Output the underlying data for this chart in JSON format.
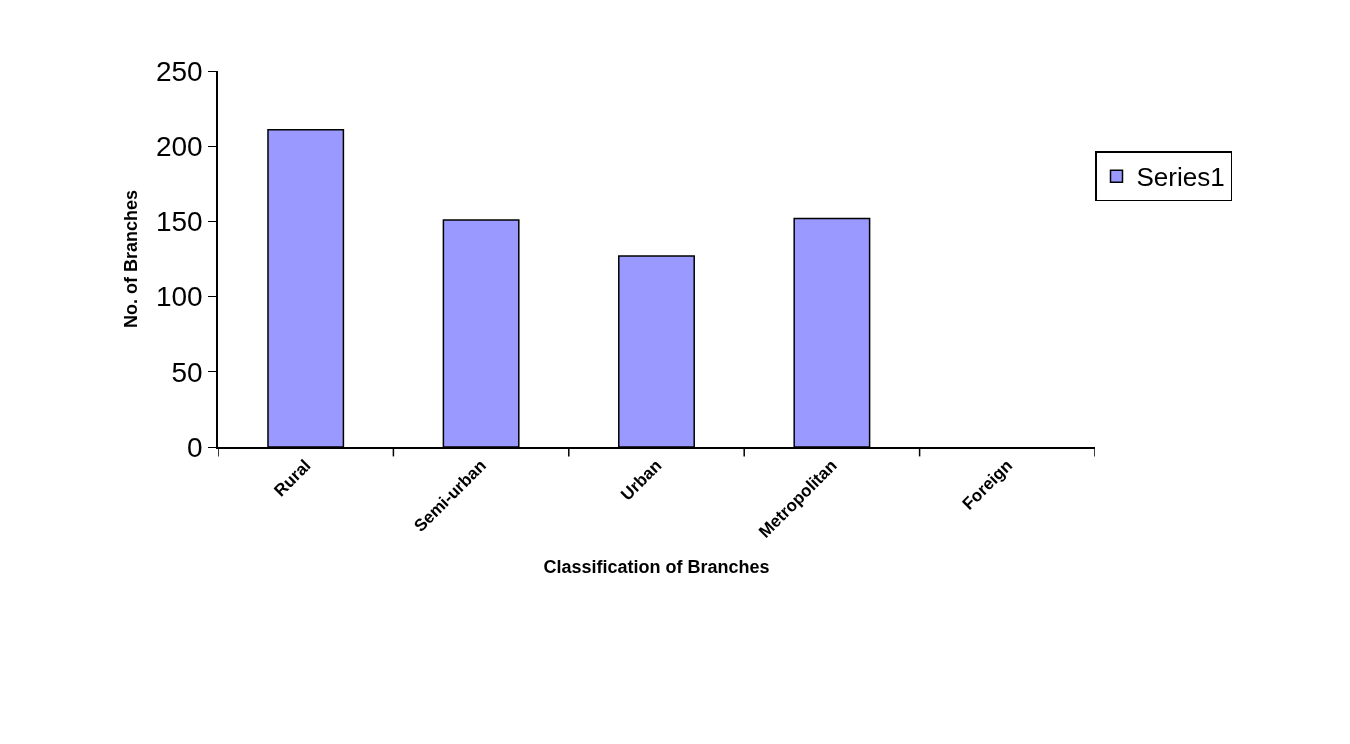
{
  "chart_data": {
    "type": "bar",
    "xlabel": "Classification of Branches",
    "ylabel": "No. of Branches",
    "categories": [
      "Rural",
      "Semi-urban",
      "Urban",
      "Metropolitan",
      "Foreign"
    ],
    "series": [
      {
        "name": "Series1",
        "color": "#9999ff",
        "values": [
          211,
          151,
          127,
          152,
          0
        ]
      }
    ],
    "ylim": [
      0,
      250
    ],
    "yticks": [
      0,
      50,
      100,
      150,
      200,
      250
    ],
    "legend": "right"
  }
}
